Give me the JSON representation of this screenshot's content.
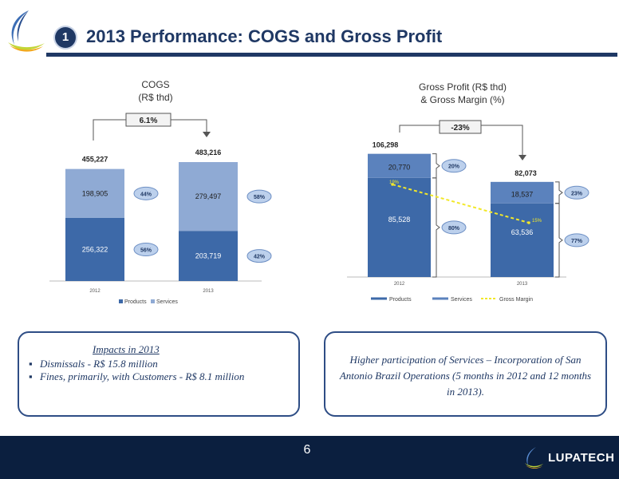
{
  "header": {
    "section_number": "1",
    "title": "2013 Performance: COGS and Gross Profit"
  },
  "colors": {
    "navy": "#1f3864",
    "products": "#3d69a8",
    "services": "#8faad4",
    "services_right": "#5b82bd",
    "gross_margin": "#f2e829",
    "oval_fill": "#bcd0ec"
  },
  "chart_data": [
    {
      "type": "bar",
      "stacked": true,
      "title": "COGS\n(R$ thd)",
      "title_lines": [
        "COGS",
        "(R$ thd)"
      ],
      "categories": [
        "2012",
        "2013"
      ],
      "series": [
        {
          "name": "Products",
          "values": [
            256322,
            203719
          ],
          "labels": [
            "256,322",
            "203,719"
          ],
          "share_labels": [
            "56%",
            "42%"
          ]
        },
        {
          "name": "Services",
          "values": [
            198905,
            279497
          ],
          "labels": [
            "198,905",
            "279,497"
          ],
          "share_labels": [
            "44%",
            "58%"
          ]
        }
      ],
      "totals": [
        455227,
        483216
      ],
      "total_labels": [
        "455,227",
        "483,216"
      ],
      "variation_label": "6.1%",
      "legend": [
        "Products",
        "Services"
      ],
      "legend_position": "bottom"
    },
    {
      "type": "bar",
      "stacked": true,
      "title": "Gross Profit (R$ thd)\n& Gross Margin (%)",
      "title_lines": [
        "Gross Profit (R$ thd)",
        "& Gross Margin (%)"
      ],
      "categories": [
        "2012",
        "2013"
      ],
      "series": [
        {
          "name": "Products",
          "values": [
            85528,
            63536
          ],
          "labels": [
            "85,528",
            "63,536"
          ],
          "share_labels": [
            "80%",
            "77%"
          ]
        },
        {
          "name": "Services",
          "values": [
            20770,
            18537
          ],
          "labels": [
            "20,770",
            "18,537"
          ],
          "share_labels": [
            "20%",
            "23%"
          ]
        },
        {
          "name": "Gross Margin",
          "type": "line",
          "values": [
            19,
            15
          ],
          "labels": [
            "19%",
            "15%"
          ]
        }
      ],
      "totals": [
        106298,
        82073
      ],
      "total_labels": [
        "106,298",
        "82,073"
      ],
      "variation_label": "-23%",
      "legend": [
        "Products",
        "Services",
        "Gross Margin"
      ],
      "legend_position": "bottom"
    }
  ],
  "notes": {
    "left": {
      "heading": "Impacts in 2013",
      "items": [
        "Dismissals -  R$ 15.8 million",
        "Fines, primarily, with Customers - R$ 8.1 million"
      ]
    },
    "right": {
      "text": "Higher participation of Services – Incorporation  of San Antonio Brazil Operations (5 months in 2012 and 12 months in 2013)."
    }
  },
  "footer": {
    "page_number": "6",
    "brand": "LUPATECH"
  }
}
